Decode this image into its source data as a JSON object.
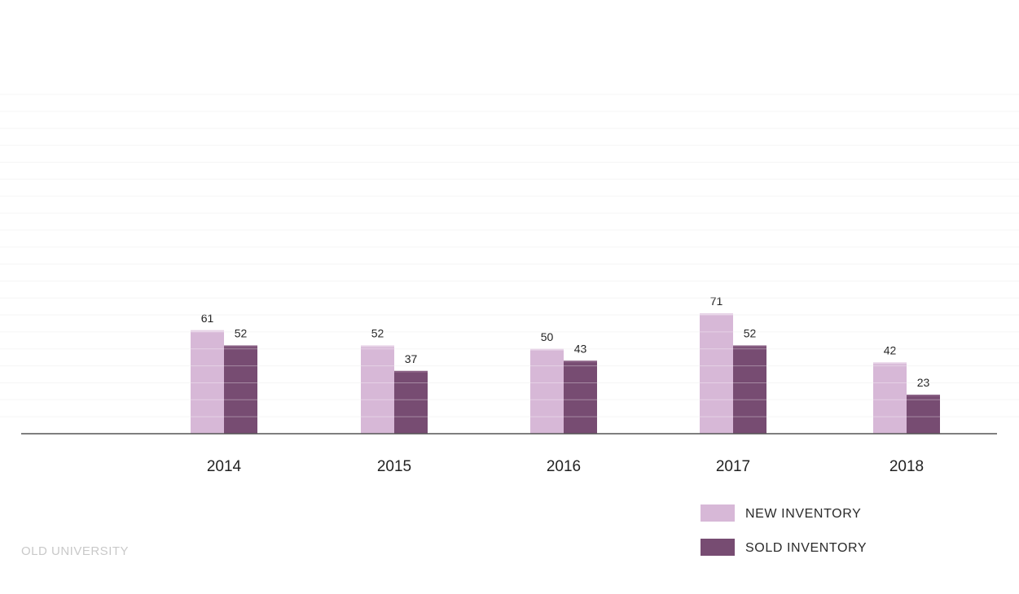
{
  "brand": "OLD UNIVERSITY",
  "colors": {
    "new_inventory": "#d7b8d7",
    "sold_inventory": "#774c72",
    "axis": "#555555",
    "grid": "#f1f1f1"
  },
  "legend": {
    "items": [
      {
        "label": "NEW INVENTORY",
        "color": "#d7b8d7"
      },
      {
        "label": "SOLD INVENTORY",
        "color": "#774c72"
      }
    ]
  },
  "chart_data": {
    "type": "bar",
    "categories": [
      "2014",
      "2015",
      "2016",
      "2017",
      "2018"
    ],
    "series": [
      {
        "name": "NEW INVENTORY",
        "values": [
          61,
          52,
          50,
          71,
          42
        ]
      },
      {
        "name": "SOLD INVENTORY",
        "values": [
          52,
          37,
          43,
          52,
          23
        ]
      }
    ],
    "title": "",
    "xlabel": "",
    "ylabel": "",
    "ylim": [
      0,
      200
    ],
    "grid": true,
    "legend_position": "bottom-right",
    "data_labels": true
  }
}
